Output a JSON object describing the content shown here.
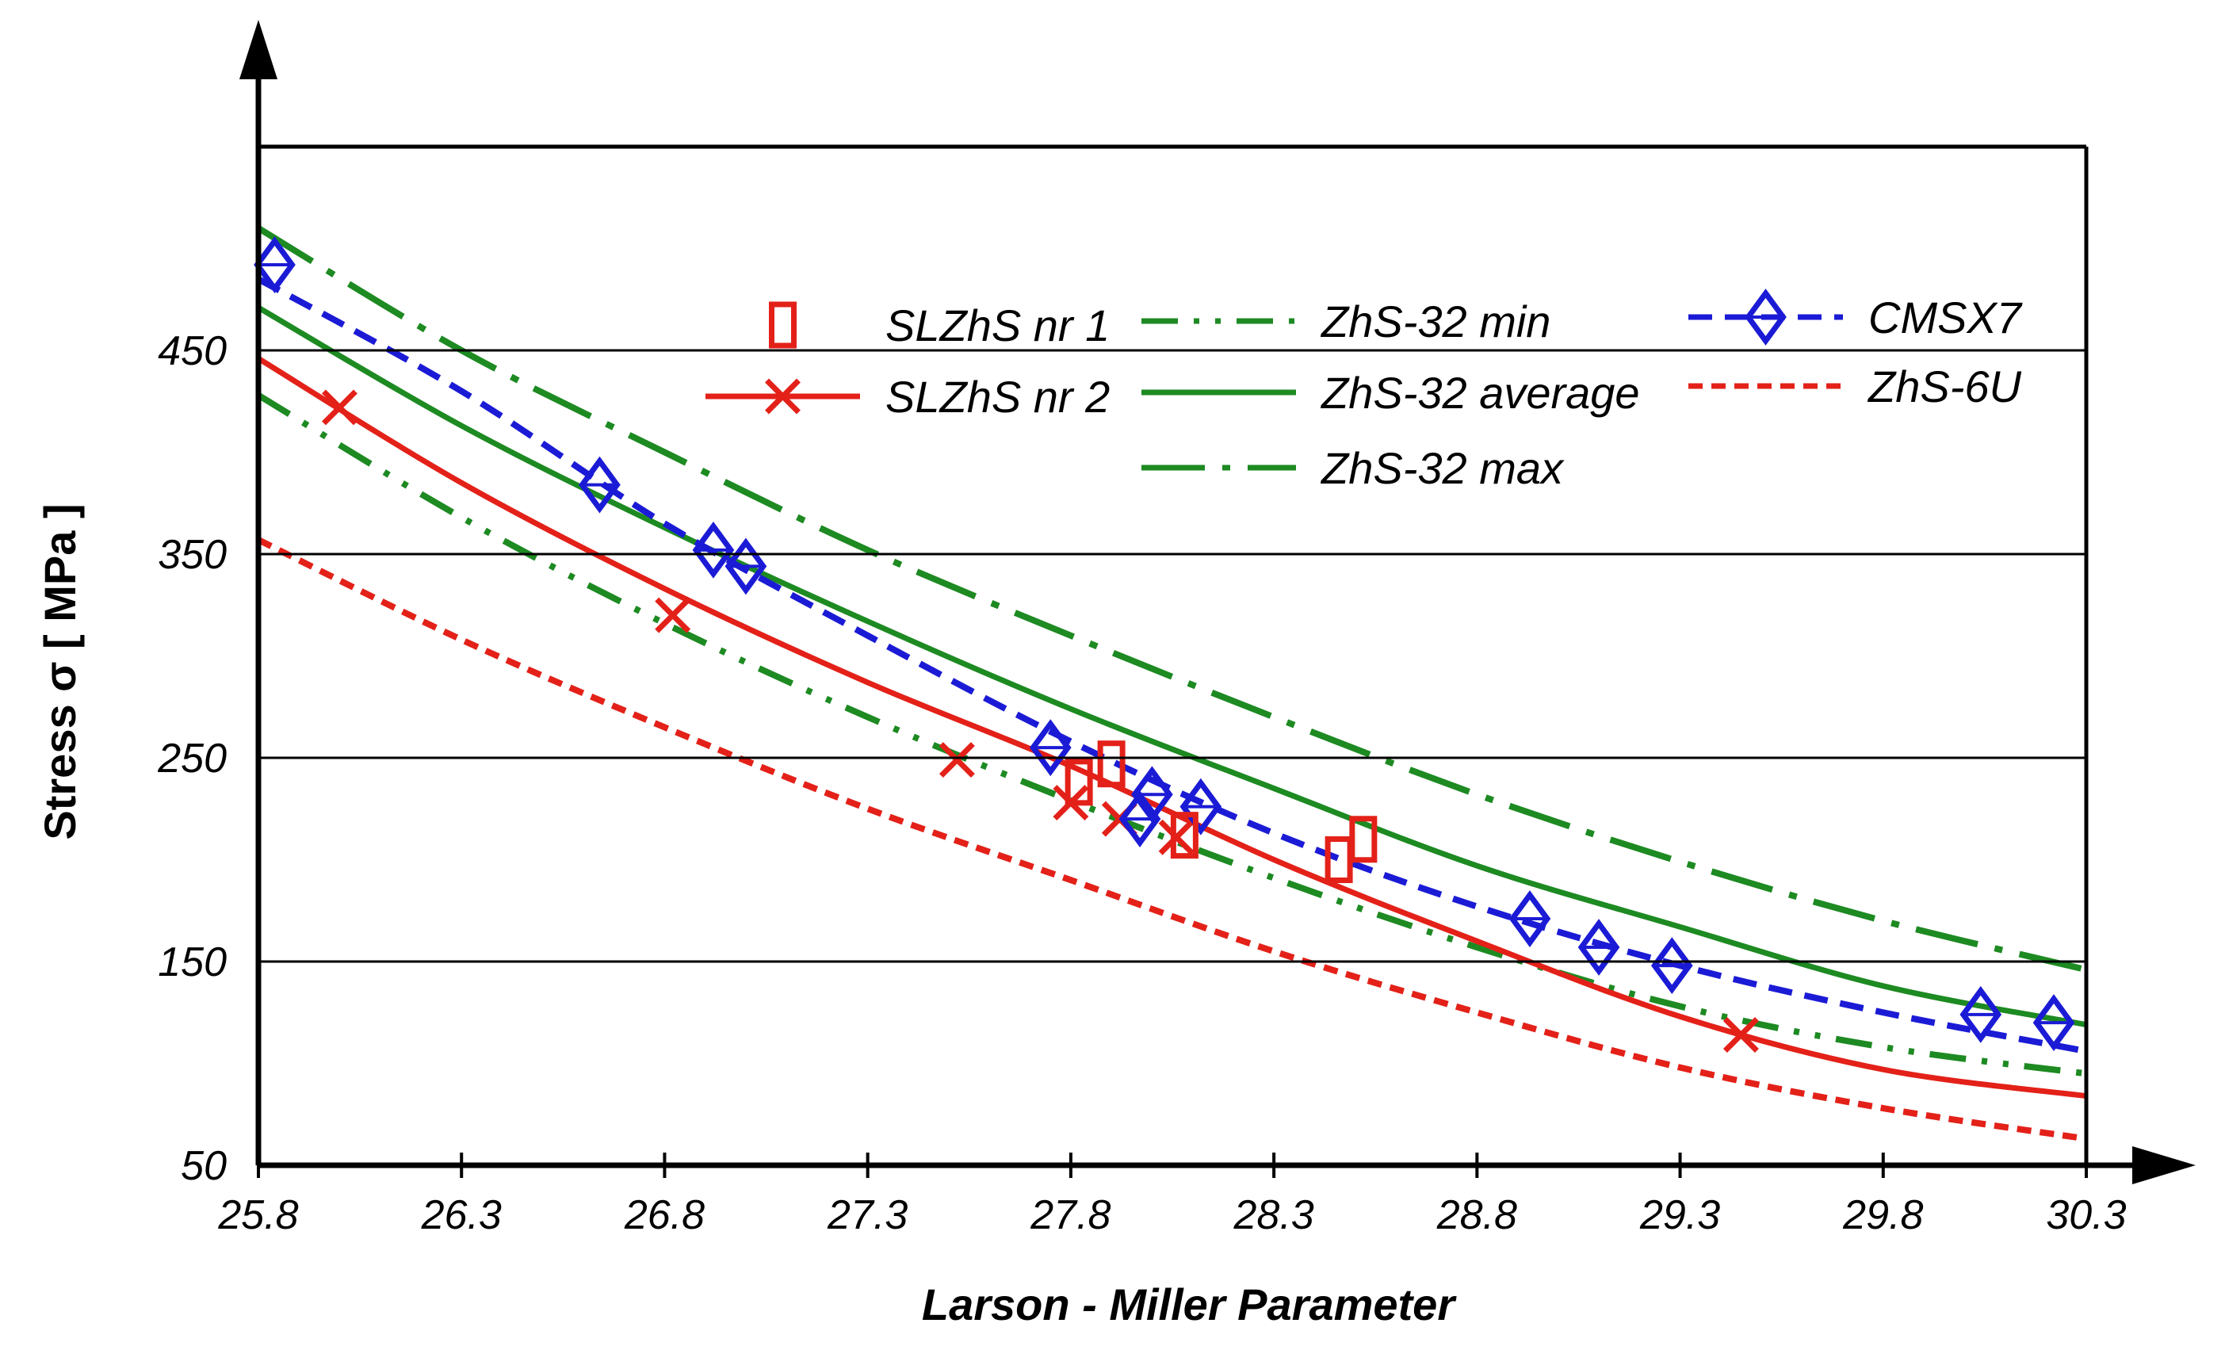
{
  "chart_data": {
    "type": "line",
    "xlabel": "Larson - Miller Parameter",
    "ylabel": "Stress σ [ MPa ]",
    "xlim": [
      25.8,
      30.3
    ],
    "ylim": [
      50,
      550
    ],
    "xticks": [
      "25.8",
      "26.3",
      "26.8",
      "27.3",
      "27.8",
      "28.3",
      "28.8",
      "29.3",
      "29.8",
      "30.3"
    ],
    "yticks": [
      "50",
      "150",
      "250",
      "350",
      "450"
    ],
    "grid": "horizontal",
    "legend_position": "top-center",
    "series": [
      {
        "name": "SLZhS nr 1",
        "style": "markers",
        "marker": "rectangle",
        "color": "#e32119",
        "points": [
          [
            27.82,
            238
          ],
          [
            27.9,
            247
          ],
          [
            28.08,
            212
          ],
          [
            28.46,
            200
          ],
          [
            28.52,
            210
          ]
        ]
      },
      {
        "name": "SLZhS nr 2",
        "style": "line+markers",
        "marker": "x",
        "dash": "solid",
        "color": "#e32119",
        "points": [
          [
            26.0,
            422
          ],
          [
            26.82,
            320
          ],
          [
            27.52,
            249
          ],
          [
            27.8,
            228
          ],
          [
            27.92,
            220
          ],
          [
            28.06,
            211
          ],
          [
            29.45,
            114
          ]
        ],
        "curve": [
          [
            25.8,
            446
          ],
          [
            26.3,
            385
          ],
          [
            26.8,
            333
          ],
          [
            27.3,
            287
          ],
          [
            27.8,
            246
          ],
          [
            28.3,
            200
          ],
          [
            28.8,
            160
          ],
          [
            29.3,
            123
          ],
          [
            29.8,
            97
          ],
          [
            30.3,
            84
          ]
        ]
      },
      {
        "name": "ZhS-32 min",
        "style": "line",
        "dash": "dash-dot-dot",
        "color": "#1d8a22",
        "curve": [
          [
            25.8,
            428
          ],
          [
            26.3,
            368
          ],
          [
            26.8,
            316
          ],
          [
            27.3,
            270
          ],
          [
            27.8,
            229
          ],
          [
            28.3,
            191
          ],
          [
            28.8,
            157
          ],
          [
            29.3,
            128
          ],
          [
            29.8,
            108
          ],
          [
            30.3,
            95
          ]
        ]
      },
      {
        "name": "ZhS-32 average",
        "style": "line",
        "dash": "solid",
        "color": "#1d8a22",
        "curve": [
          [
            25.8,
            471
          ],
          [
            26.3,
            413
          ],
          [
            26.8,
            363
          ],
          [
            27.3,
            317
          ],
          [
            27.8,
            274
          ],
          [
            28.3,
            235
          ],
          [
            28.8,
            197
          ],
          [
            29.3,
            167
          ],
          [
            29.8,
            138
          ],
          [
            30.3,
            119
          ]
        ]
      },
      {
        "name": "ZhS-32 max",
        "style": "line",
        "dash": "long-dash-dot",
        "color": "#1d8a22",
        "curve": [
          [
            25.8,
            510
          ],
          [
            26.3,
            450
          ],
          [
            26.8,
            400
          ],
          [
            27.3,
            352
          ],
          [
            27.8,
            310
          ],
          [
            28.3,
            270
          ],
          [
            28.8,
            232
          ],
          [
            29.3,
            199
          ],
          [
            29.8,
            170
          ],
          [
            30.3,
            146
          ]
        ]
      },
      {
        "name": "CMSX7",
        "style": "line+markers",
        "marker": "diamond",
        "dash": "dashed",
        "color": "#1b1bd6",
        "points": [
          [
            25.84,
            492
          ],
          [
            26.64,
            384
          ],
          [
            26.92,
            352
          ],
          [
            27.0,
            344
          ],
          [
            27.75,
            255
          ],
          [
            27.97,
            220
          ],
          [
            28.0,
            232
          ],
          [
            28.12,
            226
          ],
          [
            28.93,
            171
          ],
          [
            29.1,
            157
          ],
          [
            29.28,
            148
          ],
          [
            30.04,
            124
          ],
          [
            30.22,
            120
          ]
        ],
        "curve": [
          [
            25.8,
            485
          ],
          [
            26.3,
            430
          ],
          [
            26.8,
            365
          ],
          [
            27.3,
            310
          ],
          [
            27.8,
            258
          ],
          [
            28.3,
            213
          ],
          [
            28.8,
            177
          ],
          [
            29.3,
            148
          ],
          [
            29.8,
            125
          ],
          [
            30.3,
            106
          ]
        ]
      },
      {
        "name": "ZhS-6U",
        "style": "line",
        "dash": "short-dash",
        "color": "#e32119",
        "curve": [
          [
            25.8,
            357
          ],
          [
            26.3,
            308
          ],
          [
            26.8,
            265
          ],
          [
            27.3,
            225
          ],
          [
            27.8,
            190
          ],
          [
            28.3,
            155
          ],
          [
            28.8,
            125
          ],
          [
            29.3,
            98
          ],
          [
            29.8,
            78
          ],
          [
            30.3,
            63
          ]
        ]
      }
    ]
  }
}
